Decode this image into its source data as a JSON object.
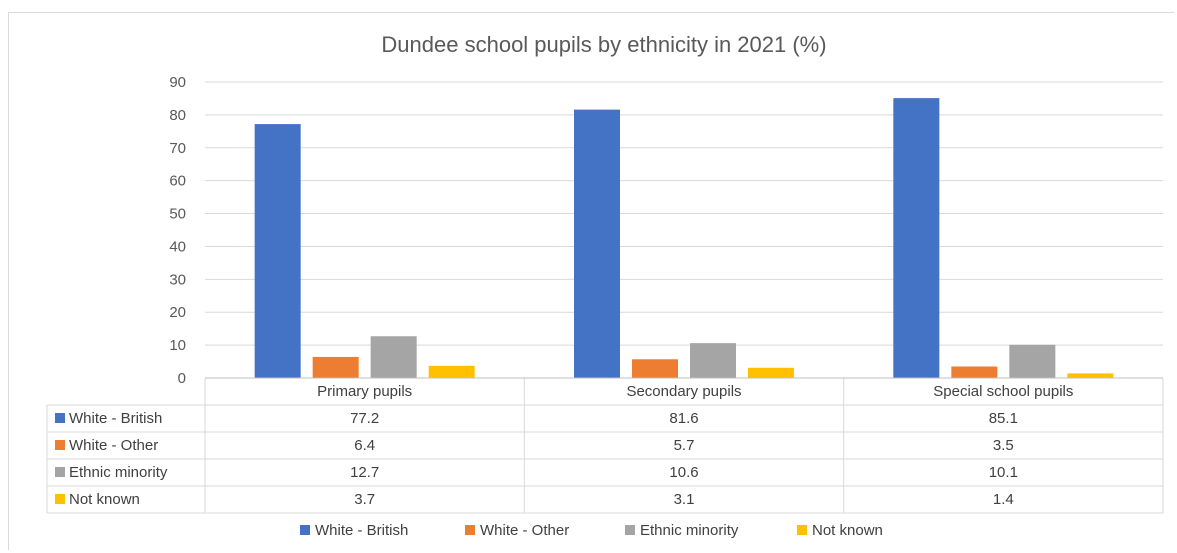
{
  "chart_data": {
    "type": "bar",
    "title": "Dundee school pupils by ethnicity in 2021 (%)",
    "categories": [
      "Primary pupils",
      "Secondary pupils",
      "Special school pupils"
    ],
    "series": [
      {
        "name": "White - British",
        "color": "#4472C4",
        "values": [
          77.2,
          81.6,
          85.1
        ]
      },
      {
        "name": "White - Other",
        "color": "#ED7D31",
        "values": [
          6.4,
          5.7,
          3.5
        ]
      },
      {
        "name": "Ethnic minority",
        "color": "#A5A5A5",
        "values": [
          12.7,
          10.6,
          10.1
        ]
      },
      {
        "name": "Not known",
        "color": "#FFC000",
        "values": [
          3.7,
          3.1,
          1.4
        ]
      }
    ],
    "y_ticks": [
      "0",
      "10",
      "20",
      "30",
      "40",
      "50",
      "60",
      "70",
      "80",
      "90"
    ],
    "ylim": [
      0,
      90
    ],
    "grid": true,
    "data_table": true,
    "legend_position": "bottom"
  }
}
